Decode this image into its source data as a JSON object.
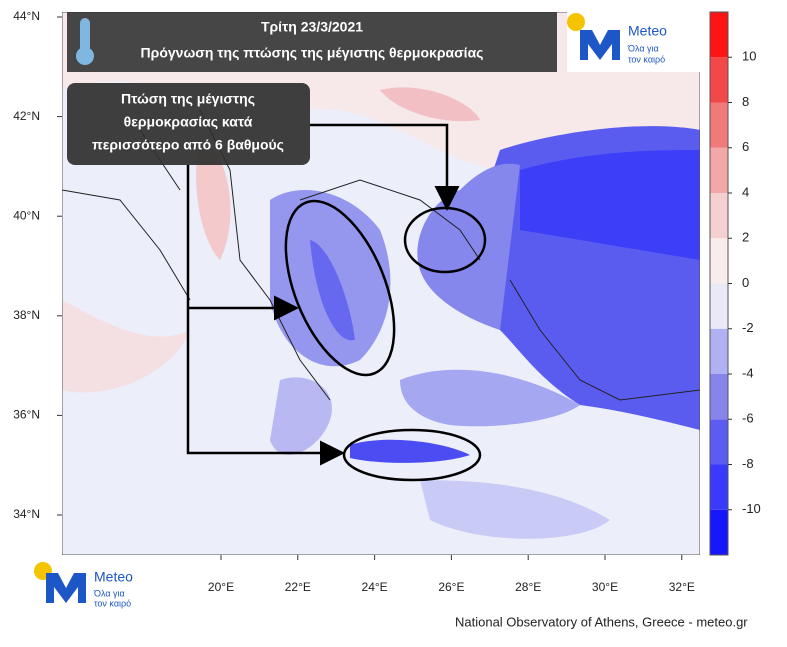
{
  "header": {
    "date": "Τρίτη 23/3/2021",
    "title": "Πρόγνωση της πτώσης της μέγιστης θερμοκρασίας"
  },
  "callout": {
    "lines": [
      "Πτώση της μέγιστης",
      "θερμοκρασίας κατά",
      "περισσότερο από 6 βαθμούς"
    ]
  },
  "logo": {
    "name": "Meteo",
    "tagline": [
      "Όλα για",
      "τον καιρό"
    ]
  },
  "map": {
    "lat_labels": [
      "44°N",
      "42°N",
      "40°N",
      "38°N",
      "36°N",
      "34°N"
    ],
    "lon_labels": [
      "20°E",
      "22°E",
      "24°E",
      "26°E",
      "28°E",
      "30°E",
      "32°E"
    ]
  },
  "colorbar": {
    "range": [
      -12,
      12
    ],
    "ticks": [
      10,
      8,
      6,
      4,
      2,
      0,
      -2,
      -4,
      -6,
      -8,
      -10
    ],
    "colors": [
      "#1616ff",
      "#3a3aff",
      "#5c5cf2",
      "#8585ec",
      "#b0b1f2",
      "#e9e9f8",
      "#f8ecec",
      "#f5d0d0",
      "#f2a8a8",
      "#f07a7a",
      "#f24848",
      "#ff1414"
    ]
  },
  "footer": "National Observatory of Athens, Greece - meteo.gr"
}
